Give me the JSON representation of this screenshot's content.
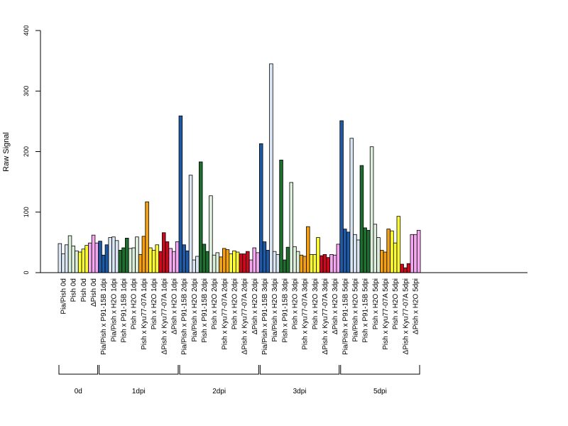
{
  "chart_data": {
    "type": "bar",
    "title": "",
    "xlabel": "",
    "ylabel": "Raw Signal",
    "ylim": [
      0,
      400
    ],
    "yticks": [
      0,
      100,
      200,
      300,
      400
    ],
    "grid": false,
    "legend": "none",
    "colors": {
      "dark_blue": "#1f5aa6",
      "light_blue": "#dbe6f4",
      "dark_green": "#1f6e30",
      "light_green": "#dcefdc",
      "orange": "#f5a010",
      "yellow": "#ffff33",
      "red": "#cc0a1e",
      "pink": "#f5a8f0"
    },
    "categories": [
      {
        "label": "Pia/Pish 0d",
        "color": "light_blue",
        "values": [
          48,
          31,
          46
        ]
      },
      {
        "label": "Pish 0d",
        "color": "light_green",
        "values": [
          61,
          44,
          36
        ]
      },
      {
        "label": "Pish 0d",
        "color": "yellow",
        "values": [
          34,
          39,
          45
        ]
      },
      {
        "label": "ΔPish 0d",
        "color": "pink",
        "values": [
          49,
          62,
          49
        ]
      },
      {
        "label": "Pia/Pish x P91-15B 1dpi",
        "color": "dark_blue",
        "values": [
          52,
          29,
          46
        ]
      },
      {
        "label": "Pia/Pish x H2O 1dpi",
        "color": "light_blue",
        "values": [
          58,
          59,
          53
        ]
      },
      {
        "label": "Pish x P91-15B 1dpi",
        "color": "dark_green",
        "values": [
          37,
          41,
          57
        ]
      },
      {
        "label": "Pish x H2O 1dpi",
        "color": "light_green",
        "values": [
          40,
          41,
          59
        ]
      },
      {
        "label": "Pish x Kyu77-07A 1dpi",
        "color": "orange",
        "values": [
          30,
          60,
          117
        ]
      },
      {
        "label": "Pish x H2O 1dpi",
        "color": "yellow",
        "values": [
          41,
          37,
          46
        ]
      },
      {
        "label": "ΔPish x Kyu77-07A 1dpi",
        "color": "red",
        "values": [
          35,
          66,
          51
        ]
      },
      {
        "label": "ΔPish x H2O 1dpi",
        "color": "pink",
        "values": [
          40,
          35,
          51
        ]
      },
      {
        "label": "Pia/Pish x P91-15B 2dpi",
        "color": "dark_blue",
        "values": [
          259,
          46,
          36
        ]
      },
      {
        "label": "Pia/Pish x H2O 2dpi",
        "color": "light_blue",
        "values": [
          161,
          21,
          27
        ]
      },
      {
        "label": "Pish x P91-15B 2dpi",
        "color": "dark_green",
        "values": [
          183,
          47,
          35
        ]
      },
      {
        "label": "Pish x H2O 2dpi",
        "color": "light_green",
        "values": [
          127,
          29,
          33
        ]
      },
      {
        "label": "Pish x Kyu77-07A 2dpi",
        "color": "orange",
        "values": [
          26,
          40,
          38
        ]
      },
      {
        "label": "Pish x H2O 2dpi",
        "color": "yellow",
        "values": [
          31,
          36,
          34
        ]
      },
      {
        "label": "ΔPish x Kyu77-07A 2dpi",
        "color": "red",
        "values": [
          31,
          31,
          35
        ]
      },
      {
        "label": "ΔPish x H2O 2dpi",
        "color": "pink",
        "values": [
          21,
          41,
          33
        ]
      },
      {
        "label": "Pia/Pish x P91-15B 3dpi",
        "color": "dark_blue",
        "values": [
          213,
          51,
          37
        ]
      },
      {
        "label": "Pia/Pish x H2O 3dpi",
        "color": "light_blue",
        "values": [
          345,
          35,
          30
        ]
      },
      {
        "label": "Pish x P91-15B 3dpi",
        "color": "dark_green",
        "values": [
          186,
          21,
          42
        ]
      },
      {
        "label": "Pish x H2O 3dpi",
        "color": "light_green",
        "values": [
          149,
          43,
          35
        ]
      },
      {
        "label": "Pish x Kyu77-07A 3dpi",
        "color": "orange",
        "values": [
          29,
          27,
          76
        ]
      },
      {
        "label": "Pish x H2O 3dpi",
        "color": "yellow",
        "values": [
          30,
          30,
          58
        ]
      },
      {
        "label": "ΔPish x Kyu77-07A 3dpi",
        "color": "red",
        "values": [
          28,
          30,
          25
        ]
      },
      {
        "label": "ΔPish x H2O 3dpi",
        "color": "pink",
        "values": [
          30,
          29,
          47
        ]
      },
      {
        "label": "Pia/Pish x P91-15B 5dpi",
        "color": "dark_blue",
        "values": [
          251,
          72,
          67
        ]
      },
      {
        "label": "Pia/Pish x H2O 5dpi",
        "color": "light_blue",
        "values": [
          222,
          63,
          54
        ]
      },
      {
        "label": "Pish x P91-15B 5dpi",
        "color": "dark_green",
        "values": [
          177,
          74,
          70
        ]
      },
      {
        "label": "Pish x H2O 5dpi",
        "color": "light_green",
        "values": [
          208,
          80,
          58
        ]
      },
      {
        "label": "Pish x Kyu77-07A 5dpi",
        "color": "orange",
        "values": [
          37,
          34,
          72
        ]
      },
      {
        "label": "Pish x H2O 5dpi",
        "color": "yellow",
        "values": [
          69,
          49,
          93
        ]
      },
      {
        "label": "ΔPish x Kyu77-07A 5dpi",
        "color": "red",
        "values": [
          14,
          8,
          15
        ]
      },
      {
        "label": "ΔPish x H2O 5dpi",
        "color": "pink",
        "values": [
          63,
          63,
          70
        ]
      }
    ],
    "groups": [
      {
        "label": "0d",
        "start": 0,
        "end": 3
      },
      {
        "label": "1dpi",
        "start": 4,
        "end": 11
      },
      {
        "label": "2dpi",
        "start": 12,
        "end": 19
      },
      {
        "label": "3dpi",
        "start": 20,
        "end": 27
      },
      {
        "label": "5dpi",
        "start": 28,
        "end": 35
      }
    ]
  }
}
